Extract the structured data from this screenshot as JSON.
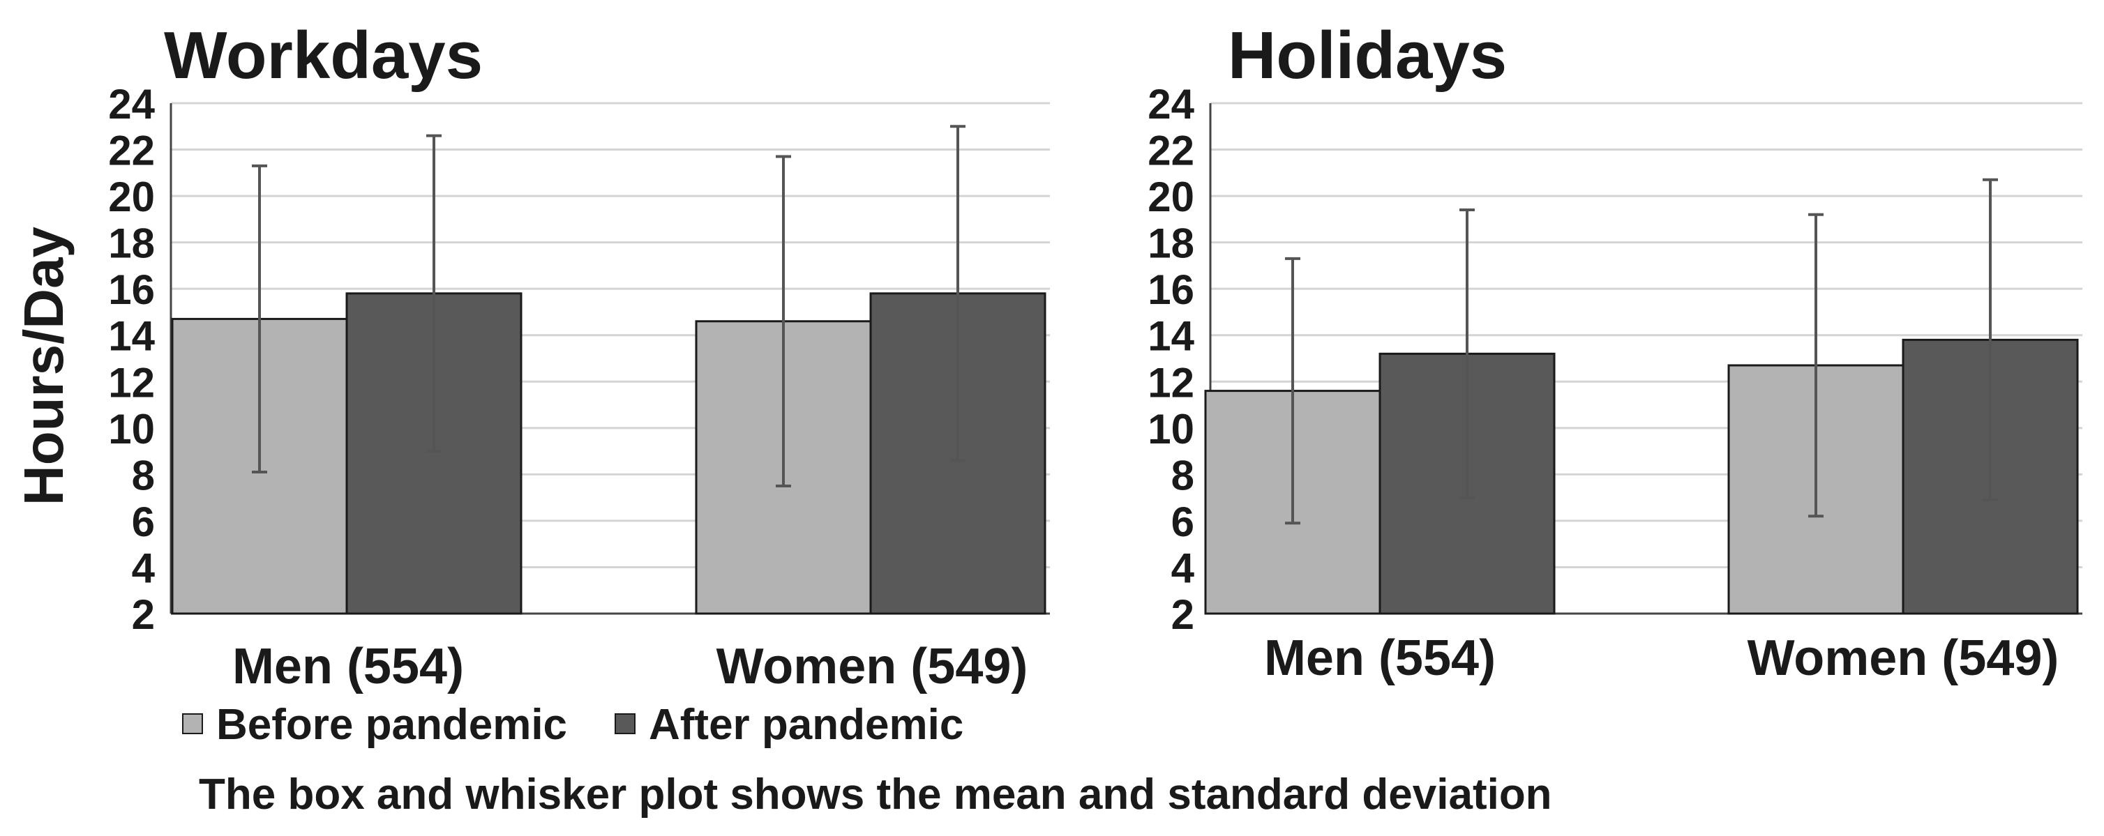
{
  "chart_data": [
    {
      "type": "bar",
      "title": "Workdays",
      "ylabel": "Hours/Day",
      "xlabel": "",
      "ylim": [
        2,
        24
      ],
      "yticks": [
        2,
        4,
        6,
        8,
        10,
        12,
        14,
        16,
        18,
        20,
        22,
        24
      ],
      "categories": [
        "Men (554)",
        "Women (549)"
      ],
      "series": [
        {
          "name": "Before pandemic",
          "color": "#b3b3b3",
          "values": [
            14.7,
            14.6
          ],
          "sd": [
            6.6,
            7.1
          ]
        },
        {
          "name": "After pandemic",
          "color": "#595959",
          "values": [
            15.8,
            15.8
          ],
          "sd": [
            6.8,
            7.2
          ]
        }
      ],
      "grid": true
    },
    {
      "type": "bar",
      "title": "Holidays",
      "ylabel": "",
      "xlabel": "",
      "ylim": [
        2,
        24
      ],
      "yticks": [
        2,
        4,
        6,
        8,
        10,
        12,
        14,
        16,
        18,
        20,
        22,
        24
      ],
      "categories": [
        "Men (554)",
        "Women (549)"
      ],
      "series": [
        {
          "name": "Before pandemic",
          "color": "#b3b3b3",
          "values": [
            11.6,
            12.7
          ],
          "sd": [
            5.7,
            6.5
          ]
        },
        {
          "name": "After pandemic",
          "color": "#595959",
          "values": [
            13.2,
            13.8
          ],
          "sd": [
            6.2,
            6.9
          ]
        }
      ],
      "grid": true
    }
  ],
  "legend": {
    "items": [
      {
        "label": "Before pandemic",
        "color": "#b3b3b3"
      },
      {
        "label": "After pandemic",
        "color": "#595959"
      }
    ],
    "position": "bottom-left"
  },
  "footnote": "The box and whisker plot shows the mean and standard deviation"
}
